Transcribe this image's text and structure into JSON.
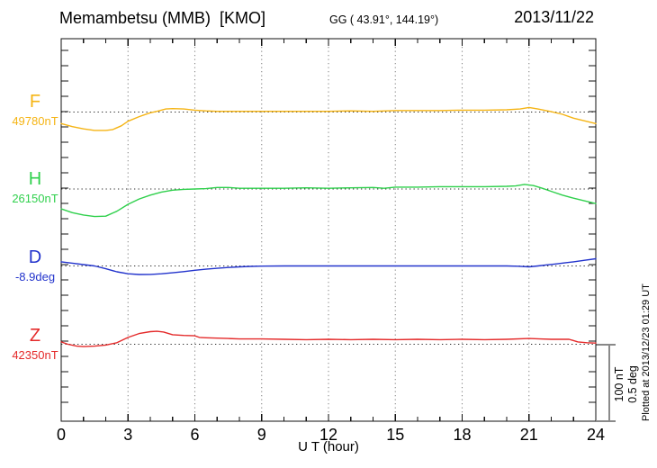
{
  "header": {
    "station": "Memambetsu (MMB)  [KMO]",
    "coordinates": "GG ( 43.91°, 144.19°)",
    "date": "2013/11/22"
  },
  "footer": {
    "plotted_at": "Plotted at 2013/12/23 01:29 UT"
  },
  "scale_bar_label": {
    "line1": "100 nT",
    "line2": "0.5 deg"
  },
  "colors": {
    "axis": "#111111",
    "grid": "#8a8a8a",
    "baseline": "#2a2a2a",
    "scale_bar": "#8a8a8a",
    "background": "#ffffff"
  },
  "chart_data": {
    "type": "line",
    "title": "Memambetsu (MMB) [KMO] magnetogram",
    "date": "2013/11/22",
    "xlabel": "U T (hour)",
    "x_range": [
      0,
      24
    ],
    "x_tick_hours": [
      0,
      3,
      6,
      9,
      12,
      15,
      18,
      21,
      24
    ],
    "x_tick_labels": [
      "0",
      "3",
      "6",
      "9",
      "12",
      "15",
      "18",
      "21",
      "24"
    ],
    "x_minor_step_hours": 1,
    "grid": true,
    "grid_hours": [
      3,
      6,
      9,
      12,
      15,
      18,
      21
    ],
    "legend_position": "left",
    "scale_bar": {
      "nT_per_bar": 100,
      "deg_per_bar": 0.5
    },
    "series": [
      {
        "name": "F",
        "unit": "nT",
        "baseline": 49780,
        "baseline_label": "49780nT",
        "color": "#F5B414",
        "x": [
          0,
          0.5,
          1,
          1.5,
          2,
          2.3,
          2.7,
          3,
          3.5,
          4,
          4.3,
          4.7,
          5,
          5.5,
          6,
          6.5,
          7,
          8,
          9,
          10,
          11,
          12,
          13,
          14,
          15,
          16,
          17,
          18,
          19,
          20,
          20.6,
          21,
          21.4,
          22,
          22.5,
          23,
          23.5,
          24
        ],
        "offsets": [
          -15,
          -19,
          -22,
          -24,
          -24,
          -23,
          -18,
          -12,
          -6,
          -1,
          1,
          4,
          4.5,
          4,
          2.5,
          1.5,
          1,
          1,
          1,
          1,
          1,
          1,
          1.5,
          1,
          2,
          2,
          2,
          2.5,
          2.5,
          3,
          4,
          6,
          4,
          0.5,
          -3,
          -8,
          -11.5,
          -15
        ]
      },
      {
        "name": "H",
        "unit": "nT",
        "baseline": 26150,
        "baseline_label": "26150nT",
        "color": "#2FD04C",
        "x": [
          0,
          0.5,
          1,
          1.5,
          2,
          2.5,
          3,
          3.5,
          4,
          4.5,
          5,
          5.5,
          6,
          6.5,
          7,
          7.5,
          8,
          9,
          10,
          11,
          12,
          13,
          14,
          14.5,
          15,
          16,
          17,
          18,
          19,
          20,
          20.4,
          20.8,
          21.2,
          21.6,
          22,
          22.5,
          23,
          23.5,
          24
        ],
        "offsets": [
          -26,
          -31,
          -34,
          -36,
          -35.5,
          -29,
          -20,
          -13,
          -8,
          -4,
          -1.5,
          -0.5,
          0,
          0.5,
          2,
          2,
          1,
          1,
          1,
          1.5,
          1,
          1.5,
          2,
          1,
          2.5,
          2.5,
          3,
          3,
          3,
          3.5,
          4,
          6,
          4.5,
          1,
          -3,
          -8,
          -12,
          -15.5,
          -19
        ]
      },
      {
        "name": "D",
        "unit": "deg",
        "baseline": -8.9,
        "baseline_label": "-8.9deg",
        "color": "#2233CC",
        "x": [
          0,
          0.5,
          1,
          1.5,
          2,
          2.5,
          3,
          3.5,
          4,
          4.5,
          5,
          5.5,
          6,
          6.5,
          7,
          7.5,
          8,
          8.5,
          9,
          10,
          11,
          12,
          13,
          14,
          15,
          16,
          17,
          18,
          19,
          20,
          20.5,
          21,
          21.4,
          21.8,
          22.2,
          22.6,
          23,
          23.5,
          24
        ],
        "offsets": [
          0.027,
          0.018,
          0.009,
          0,
          -0.018,
          -0.038,
          -0.051,
          -0.056,
          -0.055,
          -0.051,
          -0.045,
          -0.037,
          -0.028,
          -0.021,
          -0.015,
          -0.01,
          -0.006,
          -0.003,
          -0.001,
          0,
          0,
          0,
          0,
          0,
          0,
          0,
          0,
          0,
          0,
          0,
          -0.002,
          -0.006,
          0,
          0.007,
          0.013,
          0.02,
          0.027,
          0.037,
          0.047
        ]
      },
      {
        "name": "Z",
        "unit": "nT",
        "baseline": 42350,
        "baseline_label": "42350nT",
        "color": "#E42A2A",
        "x": [
          0,
          0.3,
          0.7,
          1,
          1.5,
          2,
          2.5,
          3,
          3.5,
          4,
          4.3,
          4.6,
          5,
          5.5,
          6,
          6.2,
          6.5,
          7,
          7.5,
          8,
          9,
          10,
          11,
          12,
          13,
          14,
          15,
          16,
          17,
          18,
          19,
          20,
          21,
          21.5,
          22,
          22.8,
          23.2,
          23.6,
          24
        ],
        "offsets": [
          3,
          0,
          -2.5,
          -3,
          -2.5,
          -1,
          2,
          9,
          14,
          16.5,
          17,
          16,
          12.5,
          11.5,
          11,
          9,
          8.5,
          8,
          7.5,
          7,
          7,
          6.5,
          6,
          6.5,
          6,
          6.5,
          6,
          6.5,
          6,
          6.5,
          6,
          6.5,
          7.5,
          7,
          6.5,
          6.5,
          3,
          2,
          1.5
        ]
      }
    ]
  }
}
